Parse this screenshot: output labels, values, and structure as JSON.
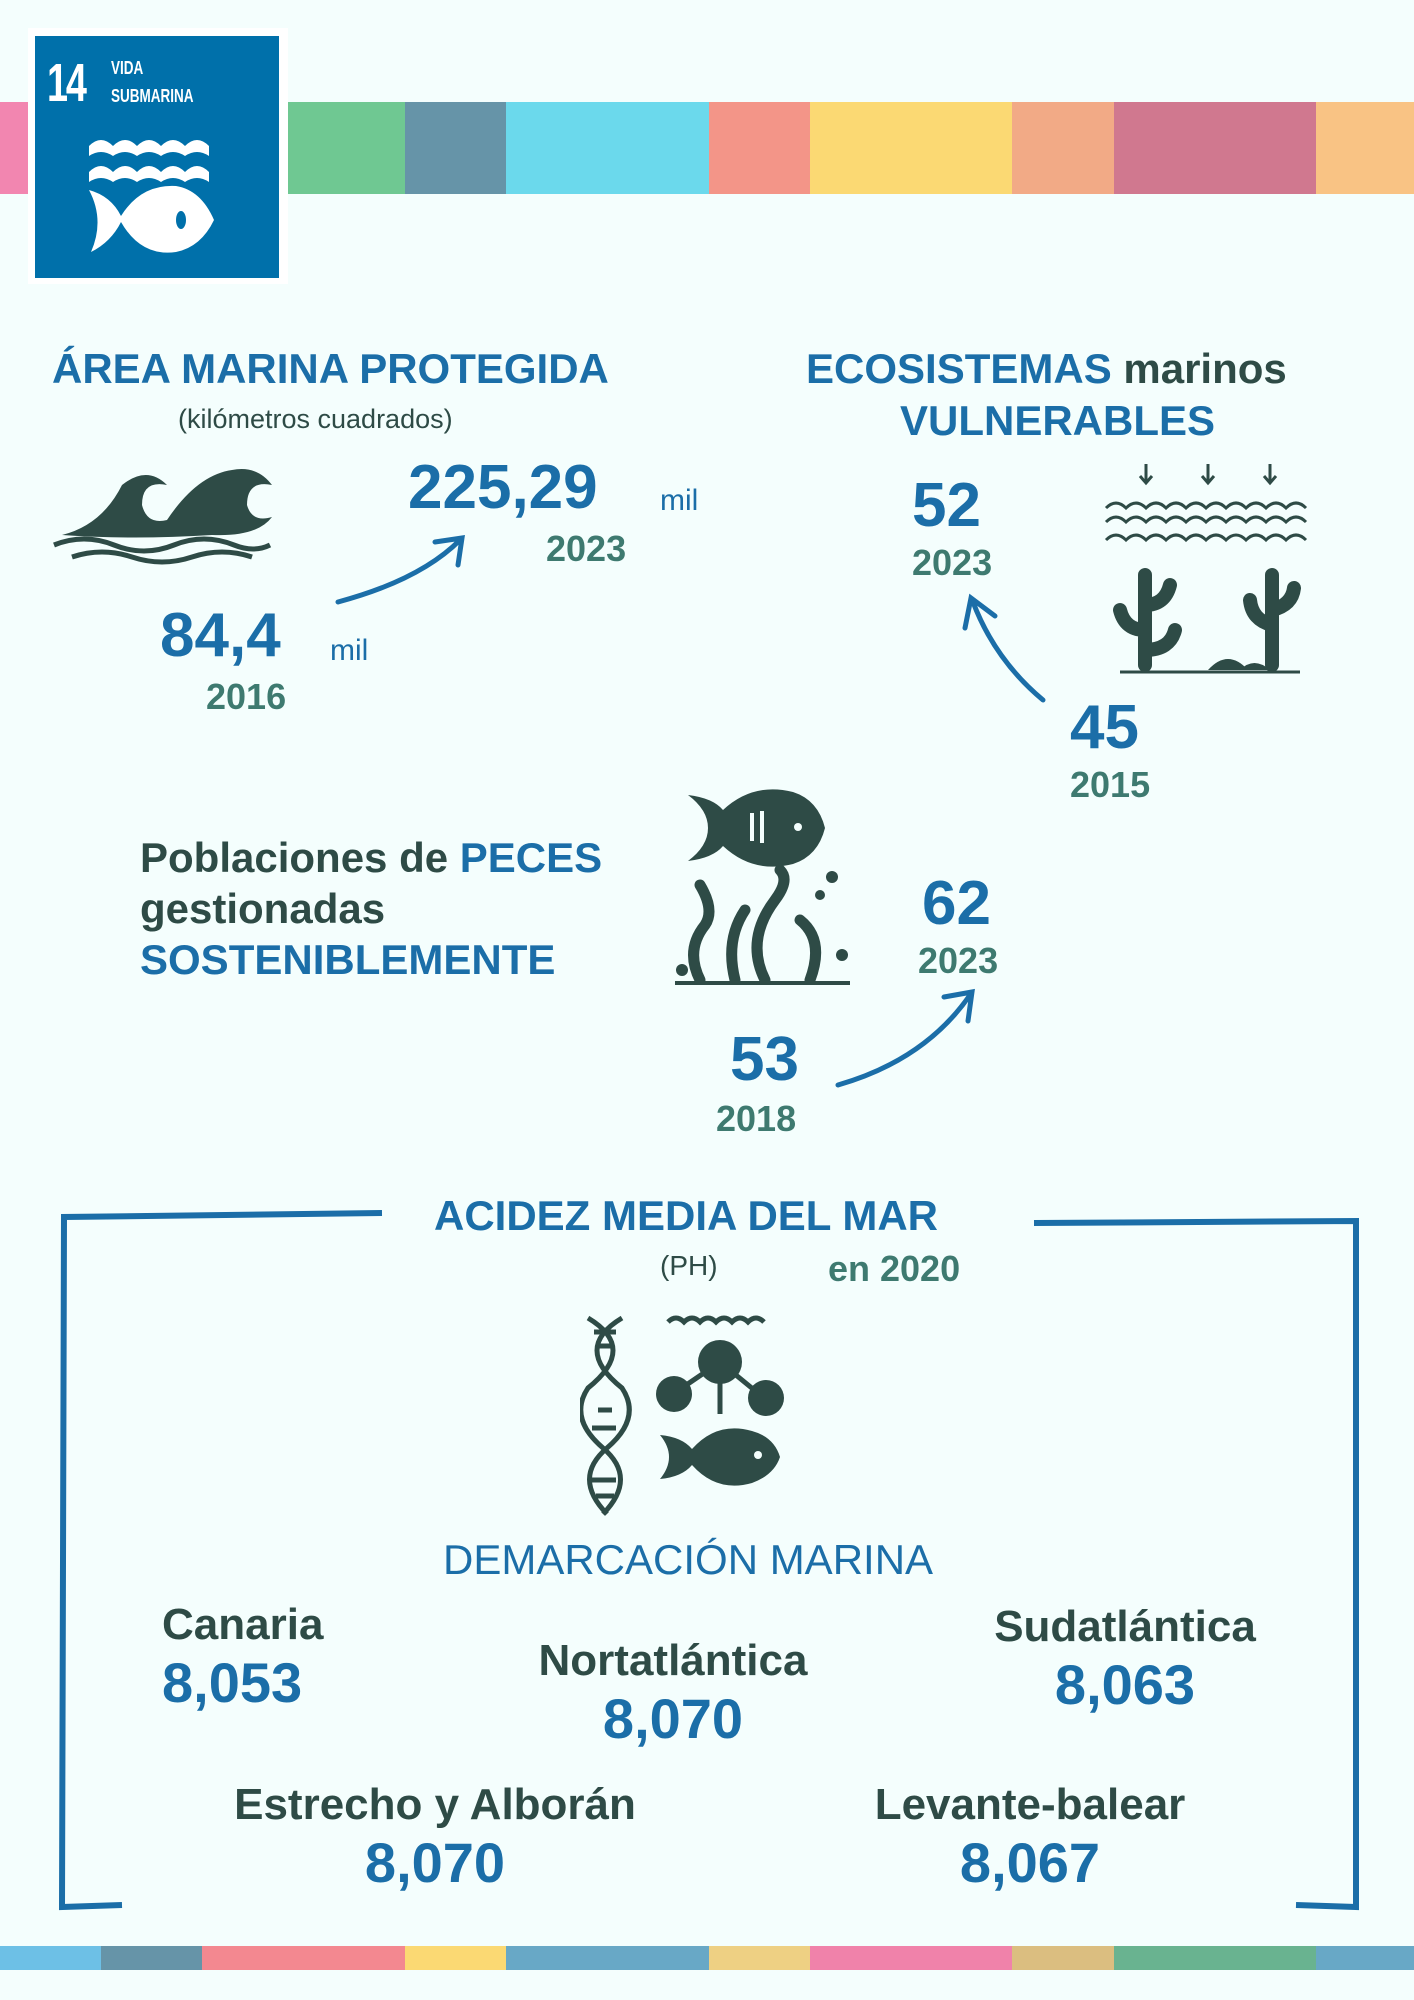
{
  "logo": {
    "number": "14",
    "line1": "VIDA",
    "line2": "SUBMARINA"
  },
  "colors": {
    "blue": "#1b6ea8",
    "dark": "#2e4b46",
    "teal": "#3e7a70",
    "logo": "#0070aa"
  },
  "area": {
    "title": "ÁREA MARINA PROTEGIDA",
    "subtitle": "(kilómetros cuadrados)",
    "start_value": "84,4",
    "start_unit": "mil",
    "start_year": "2016",
    "end_value": "225,29",
    "end_unit": "mil",
    "end_year": "2023"
  },
  "ecosistemas": {
    "title_bold": "ECOSISTEMAS",
    "title_rest": " marinos",
    "title_line2": "VULNERABLES",
    "start_value": "45",
    "start_year": "2015",
    "end_value": "52",
    "end_year": "2023"
  },
  "peces": {
    "line1a": "Poblaciones de ",
    "line1b": "PECES",
    "line2": "gestionadas",
    "line3": "SOSTENIBLEMENTE",
    "start_value": "53",
    "start_year": "2018",
    "end_value": "62",
    "end_year": "2023"
  },
  "acidez": {
    "title": "ACIDEZ MEDIA DEL MAR",
    "unit": "(PH)",
    "year": "en 2020",
    "demarcacion": "DEMARCACIÓN MARINA",
    "regions": [
      {
        "name": "Canaria",
        "value": "8,053"
      },
      {
        "name": "Nortatlántica",
        "value": "8,070"
      },
      {
        "name": "Sudatlántica",
        "value": "8,063"
      },
      {
        "name": "Estrecho y Alborán",
        "value": "8,070"
      },
      {
        "name": "Levante-balear",
        "value": "8,067"
      }
    ]
  }
}
